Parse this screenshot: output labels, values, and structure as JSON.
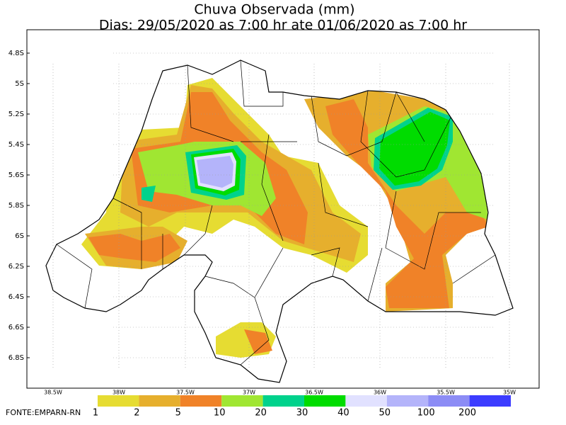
{
  "title": "Chuva Observada (mm)",
  "subtitle": "Dias: 29/05/2020 as 7:00 hr ate 01/06/2020 as 7:00 hr",
  "latitude_labels": [
    "4.8S",
    "5S",
    "5.2S",
    "5.4S",
    "5.6S",
    "5.8S",
    "6S",
    "6.2S",
    "6.4S",
    "6.6S",
    "6.8S"
  ],
  "longitude_labels": [
    "38.5W",
    "38W",
    "37.5W",
    "37W",
    "36.5W",
    "36W",
    "35.5W",
    "35W"
  ],
  "legend": {
    "labels": [
      "1",
      "2",
      "5",
      "10",
      "20",
      "30",
      "40",
      "50",
      "100",
      "200"
    ]
  },
  "source": "FONTE:EMPARN-RN"
}
